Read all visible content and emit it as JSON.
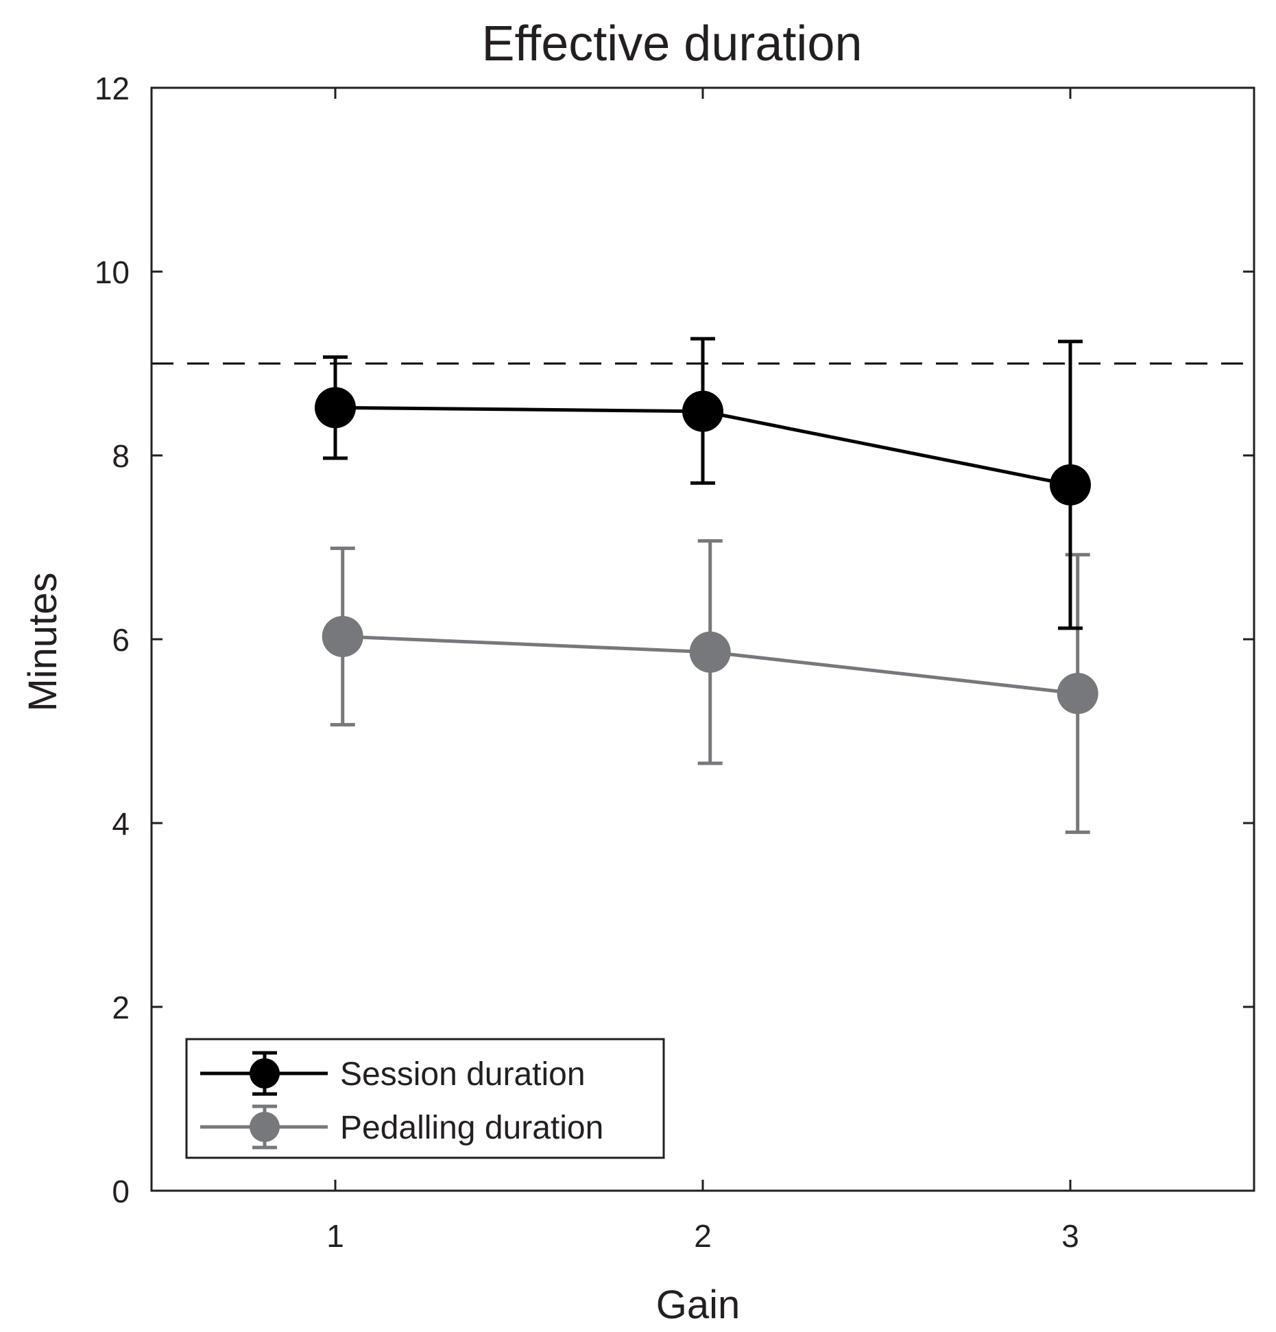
{
  "chart_data": {
    "type": "line",
    "title": "Effective duration",
    "xlabel": "Gain",
    "ylabel": "Minutes",
    "xlim": [
      0.5,
      3.5
    ],
    "ylim": [
      0,
      12
    ],
    "xticks": [
      1,
      2,
      3
    ],
    "yticks": [
      0,
      2,
      4,
      6,
      8,
      10,
      12
    ],
    "grid": false,
    "legend_position": "bottom-left",
    "reference_line": {
      "y": 9,
      "style": "dashed",
      "color": "#000000"
    },
    "series": [
      {
        "name": "Session duration",
        "color": "#000000",
        "x": [
          1,
          2,
          3
        ],
        "values": [
          8.52,
          8.48,
          7.68
        ],
        "error_low": [
          7.97,
          7.7,
          6.12
        ],
        "error_high": [
          9.07,
          9.27,
          9.24
        ]
      },
      {
        "name": "Pedalling duration",
        "color": "#77787b",
        "x": [
          1.02,
          2.02,
          3.02
        ],
        "values": [
          6.03,
          5.86,
          5.41
        ],
        "error_low": [
          5.07,
          4.65,
          3.9
        ],
        "error_high": [
          6.99,
          7.07,
          6.92
        ]
      }
    ]
  }
}
